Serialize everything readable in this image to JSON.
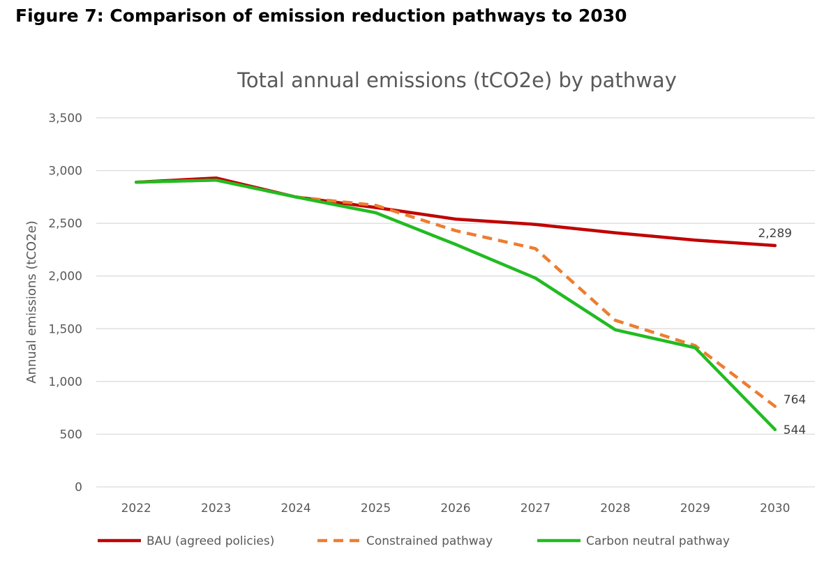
{
  "figure_heading": "Figure 7: Comparison of emission reduction pathways to 2030",
  "chart_data": {
    "type": "line",
    "title": "Total annual emissions (tCO2e) by pathway",
    "xlabel": "",
    "ylabel": "Annual emissions (tCO2e)",
    "x": [
      "2022",
      "2023",
      "2024",
      "2025",
      "2026",
      "2027",
      "2028",
      "2029",
      "2030"
    ],
    "ylim": [
      0,
      3500
    ],
    "yticks": [
      0,
      500,
      1000,
      1500,
      2000,
      2500,
      3000,
      3500
    ],
    "ytick_labels": [
      "0",
      "500",
      "1,000",
      "1,500",
      "2,000",
      "2,500",
      "3,000",
      "3,500"
    ],
    "grid": "horizontal",
    "legend_position": "bottom",
    "series": [
      {
        "name": "BAU (agreed policies)",
        "color": "#C00000",
        "style": "solid",
        "values": [
          2890,
          2930,
          2750,
          2650,
          2540,
          2490,
          2410,
          2340,
          2289
        ],
        "end_label": "2,289"
      },
      {
        "name": "Constrained pathway",
        "color": "#ED7D31",
        "style": "dashed",
        "values": [
          2890,
          2910,
          2750,
          2670,
          2430,
          2260,
          1580,
          1340,
          764
        ],
        "end_label": "764"
      },
      {
        "name": "Carbon neutral pathway",
        "color": "#22BB22",
        "style": "solid",
        "values": [
          2890,
          2910,
          2750,
          2600,
          2300,
          1980,
          1490,
          1320,
          544
        ],
        "end_label": "544"
      }
    ]
  }
}
